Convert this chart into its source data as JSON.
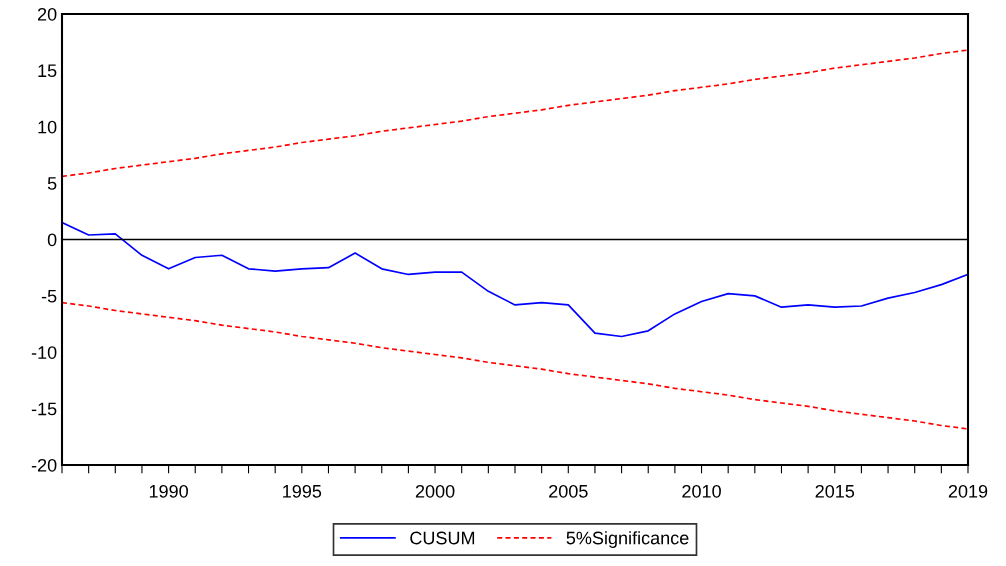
{
  "chart_data": {
    "type": "line",
    "categories": [
      null,
      null,
      null,
      null,
      "1990",
      null,
      null,
      null,
      null,
      "1995",
      null,
      null,
      null,
      null,
      "2000",
      null,
      null,
      null,
      null,
      "2005",
      null,
      null,
      null,
      null,
      "2010",
      null,
      null,
      null,
      null,
      "2015",
      null,
      null,
      null,
      null,
      "2019"
    ],
    "series": [
      {
        "name": "CUSUM",
        "color": "#0000ff",
        "line_style": "solid",
        "values": [
          1.5,
          0.4,
          0.5,
          -1.4,
          -2.6,
          -1.6,
          -1.4,
          -2.6,
          -2.8,
          -2.6,
          -2.5,
          -1.2,
          -2.6,
          -3.1,
          -2.9,
          -2.9,
          -4.6,
          -5.8,
          -5.6,
          -5.8,
          -8.3,
          -8.6,
          -8.1,
          -6.6,
          -5.5,
          -4.8,
          -5.0,
          -6.0,
          -5.8,
          -6.0,
          -5.9,
          -5.2,
          -4.7,
          -4.0,
          -3.1
        ]
      },
      {
        "name": "5%Significance",
        "color": "#ff0000",
        "line_style": "dashed",
        "values": [
          5.6,
          5.9,
          6.3,
          6.6,
          6.9,
          7.2,
          7.6,
          7.9,
          8.2,
          8.6,
          8.9,
          9.2,
          9.6,
          9.9,
          10.2,
          10.5,
          10.9,
          11.2,
          11.5,
          11.9,
          12.2,
          12.5,
          12.8,
          13.2,
          13.5,
          13.8,
          14.2,
          14.5,
          14.8,
          15.2,
          15.5,
          15.8,
          16.1,
          16.5,
          16.8
        ]
      },
      {
        "color": "#ff0000",
        "line_style": "dashed",
        "values": [
          -5.6,
          -5.9,
          -6.3,
          -6.6,
          -6.9,
          -7.2,
          -7.6,
          -7.9,
          -8.2,
          -8.6,
          -8.9,
          -9.2,
          -9.6,
          -9.9,
          -10.2,
          -10.5,
          -10.9,
          -11.2,
          -11.5,
          -11.9,
          -12.2,
          -12.5,
          -12.8,
          -13.2,
          -13.5,
          -13.8,
          -14.2,
          -14.5,
          -14.8,
          -15.2,
          -15.5,
          -15.8,
          -16.1,
          -16.5,
          -16.8
        ]
      }
    ],
    "ylim": [
      -20,
      20
    ],
    "yticks": [
      -20,
      -15,
      -10,
      -5,
      0,
      5,
      10,
      15,
      20
    ],
    "ref_lines": [
      {
        "axis": "y",
        "value": 0,
        "color": "#000000"
      }
    ],
    "grid": false,
    "legend": "bottom",
    "marker": "none"
  }
}
